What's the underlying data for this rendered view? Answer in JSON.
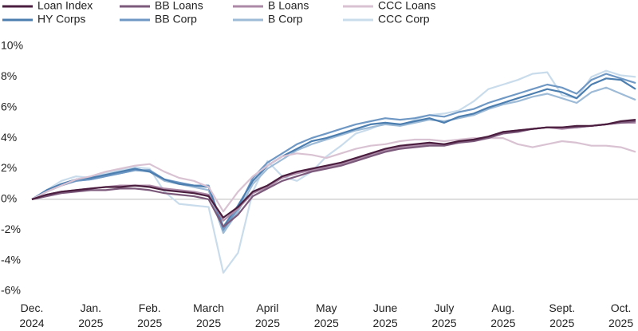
{
  "chart_data": {
    "type": "line",
    "categories": [
      "Dec. 2024",
      null,
      null,
      null,
      "Jan. 2025",
      null,
      null,
      null,
      "Feb. 2025",
      null,
      null,
      null,
      "March 2025",
      null,
      null,
      null,
      "April 2025",
      null,
      null,
      null,
      "May 2025",
      null,
      null,
      null,
      "June 2025",
      null,
      null,
      null,
      "July 2025",
      null,
      null,
      null,
      "Aug. 2025",
      null,
      null,
      null,
      "Sept. 2025",
      null,
      null,
      null,
      "Oct. 2025",
      null
    ],
    "ylim": [
      -6,
      10
    ],
    "yticks": [
      {
        "value": -6,
        "label": "-6%"
      },
      {
        "value": -4,
        "label": "-4%"
      },
      {
        "value": -2,
        "label": "-2%"
      },
      {
        "value": 0,
        "label": "0%"
      },
      {
        "value": 2,
        "label": "2%"
      },
      {
        "value": 4,
        "label": "4%"
      },
      {
        "value": 6,
        "label": "6%"
      },
      {
        "value": 8,
        "label": "8%"
      },
      {
        "value": 10,
        "label": "10%"
      }
    ],
    "grid": false,
    "zeroline": true,
    "legend": "top",
    "series": [
      {
        "name": "Loan Index",
        "color": "#4b1d3f",
        "values": [
          0,
          0.3,
          0.5,
          0.6,
          0.7,
          0.8,
          0.8,
          0.9,
          0.8,
          0.6,
          0.5,
          0.4,
          0.2,
          -1.2,
          -0.5,
          0.5,
          0.9,
          1.5,
          1.8,
          2.0,
          2.2,
          2.4,
          2.7,
          3.0,
          3.3,
          3.5,
          3.6,
          3.7,
          3.6,
          3.8,
          3.9,
          4.1,
          4.4,
          4.5,
          4.6,
          4.7,
          4.7,
          4.8,
          4.8,
          4.9,
          5.1,
          5.2
        ]
      },
      {
        "name": "BB Loans",
        "color": "#7c5a7c",
        "values": [
          0,
          0.2,
          0.4,
          0.5,
          0.6,
          0.6,
          0.7,
          0.7,
          0.6,
          0.4,
          0.3,
          0.2,
          0.0,
          -1.8,
          -1.0,
          0.2,
          0.7,
          1.2,
          1.5,
          1.8,
          2.0,
          2.2,
          2.5,
          2.8,
          3.1,
          3.3,
          3.4,
          3.5,
          3.5,
          3.7,
          3.8,
          4.0,
          4.3,
          4.4,
          4.6,
          4.7,
          4.7,
          4.7,
          4.8,
          4.9,
          5.0,
          5.1
        ]
      },
      {
        "name": "B Loans",
        "color": "#ac8aa7",
        "values": [
          0,
          0.3,
          0.5,
          0.6,
          0.7,
          0.8,
          0.9,
          0.9,
          0.9,
          0.7,
          0.6,
          0.5,
          0.3,
          -1.4,
          -0.6,
          0.4,
          0.8,
          1.4,
          1.7,
          1.9,
          2.1,
          2.3,
          2.6,
          2.9,
          3.2,
          3.4,
          3.5,
          3.6,
          3.6,
          3.7,
          3.9,
          4.1,
          4.4,
          4.5,
          4.6,
          4.7,
          4.6,
          4.7,
          4.8,
          4.9,
          5.0,
          5.0
        ]
      },
      {
        "name": "CCC Loans",
        "color": "#d9c3d3",
        "values": [
          0,
          0.5,
          0.9,
          1.3,
          1.5,
          1.8,
          2.0,
          2.2,
          2.3,
          1.8,
          1.4,
          1.2,
          0.8,
          -0.8,
          0.5,
          1.5,
          2.2,
          2.8,
          3.0,
          2.9,
          2.7,
          3.0,
          3.3,
          3.5,
          3.6,
          3.8,
          3.9,
          3.9,
          3.8,
          3.9,
          4.0,
          4.0,
          4.0,
          3.6,
          3.4,
          3.6,
          3.8,
          3.7,
          3.5,
          3.5,
          3.4,
          3.1
        ]
      },
      {
        "name": "HY Corps",
        "color": "#4c7eb0",
        "values": [
          0,
          0.6,
          1.0,
          1.3,
          1.4,
          1.6,
          1.8,
          2.0,
          1.8,
          1.3,
          1.0,
          0.9,
          0.8,
          -1.8,
          -0.4,
          1.2,
          2.2,
          2.8,
          3.3,
          3.8,
          4.0,
          4.3,
          4.6,
          4.9,
          5.0,
          4.9,
          5.1,
          5.3,
          5.0,
          5.4,
          5.6,
          6.0,
          6.3,
          6.6,
          6.9,
          7.2,
          7.0,
          6.6,
          7.5,
          7.9,
          7.8,
          7.2
        ]
      },
      {
        "name": "BB Corp",
        "color": "#6f98c4",
        "values": [
          0,
          0.5,
          0.9,
          1.2,
          1.3,
          1.5,
          1.7,
          1.9,
          1.9,
          1.3,
          1.1,
          0.9,
          0.9,
          -2.0,
          -0.6,
          1.4,
          2.4,
          3.0,
          3.6,
          4.0,
          4.3,
          4.6,
          4.9,
          5.1,
          5.3,
          5.2,
          5.3,
          5.5,
          5.4,
          5.7,
          5.9,
          6.3,
          6.6,
          6.9,
          7.2,
          7.5,
          7.3,
          6.9,
          7.8,
          8.2,
          7.9,
          7.6
        ]
      },
      {
        "name": "B Corp",
        "color": "#9dbad6",
        "values": [
          0,
          0.5,
          0.9,
          1.2,
          1.3,
          1.5,
          1.7,
          1.9,
          1.8,
          1.2,
          1.0,
          0.8,
          0.6,
          -2.2,
          -0.8,
          1.0,
          2.0,
          2.6,
          3.2,
          3.6,
          3.9,
          4.2,
          4.5,
          4.7,
          4.9,
          4.8,
          5.0,
          5.2,
          5.1,
          5.3,
          5.5,
          5.9,
          6.2,
          6.4,
          6.7,
          6.9,
          6.6,
          6.3,
          7.0,
          7.3,
          6.9,
          6.5
        ]
      },
      {
        "name": "CCC Corp",
        "color": "#c9dcec",
        "values": [
          0,
          0.6,
          1.2,
          1.5,
          1.4,
          1.7,
          1.9,
          2.1,
          2.0,
          0.5,
          -0.3,
          -0.4,
          -0.5,
          -4.8,
          -3.5,
          0.5,
          2.5,
          1.5,
          1.2,
          1.8,
          2.8,
          3.5,
          4.3,
          4.6,
          5.0,
          4.8,
          5.2,
          5.5,
          5.6,
          5.8,
          6.4,
          7.2,
          7.5,
          7.8,
          8.2,
          8.3,
          6.8,
          6.6,
          8.0,
          8.4,
          8.1,
          8.0
        ]
      }
    ]
  }
}
